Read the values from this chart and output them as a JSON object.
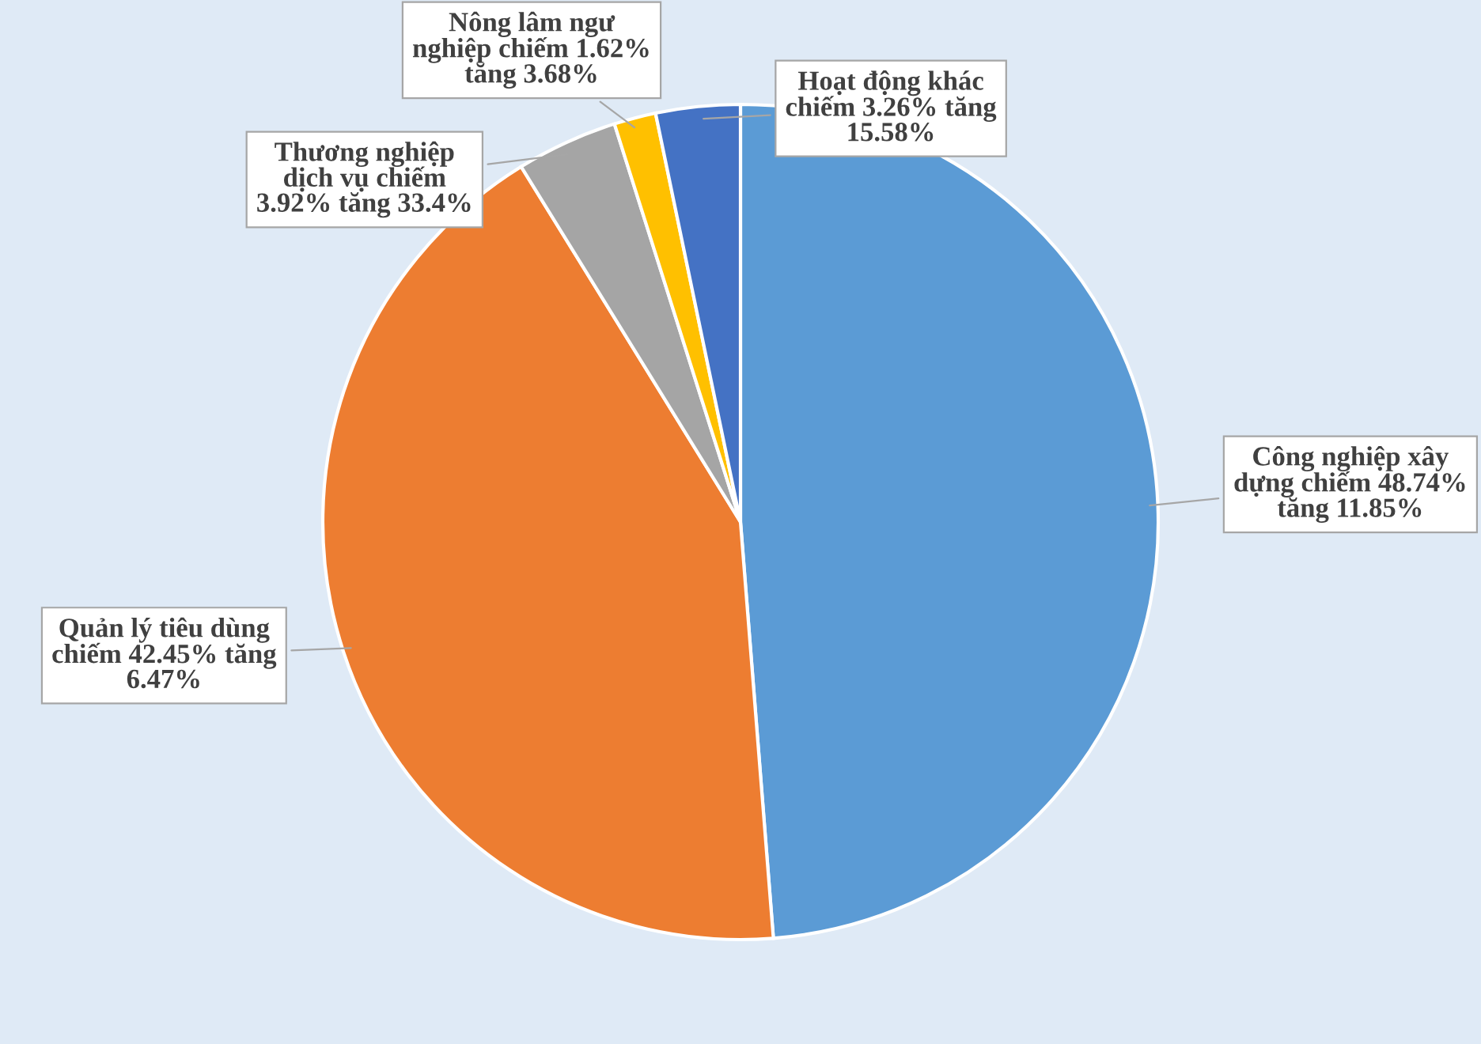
{
  "chart_data": {
    "type": "pie",
    "categories": [
      "Công nghiệp xây\ndựng chiếm 48.74%\ntăng 11.85%",
      "Quản lý tiêu dùng\nchiếm 42.45% tăng\n6.47%",
      "Thương nghiệp\ndịch vụ chiếm\n3.92% tăng 33.4%",
      "Nông lâm ngư\nnghiệp chiếm 1.62%\ntăng 3.68%",
      "Hoạt động khác\nchiếm 3.26% tăng\n15.58%"
    ],
    "values": [
      48.74,
      42.45,
      3.92,
      1.62,
      3.26
    ],
    "colors": [
      "#5b9bd5",
      "#ed7d31",
      "#a5a5a5",
      "#ffc000",
      "#4472c4"
    ],
    "legend": false
  }
}
